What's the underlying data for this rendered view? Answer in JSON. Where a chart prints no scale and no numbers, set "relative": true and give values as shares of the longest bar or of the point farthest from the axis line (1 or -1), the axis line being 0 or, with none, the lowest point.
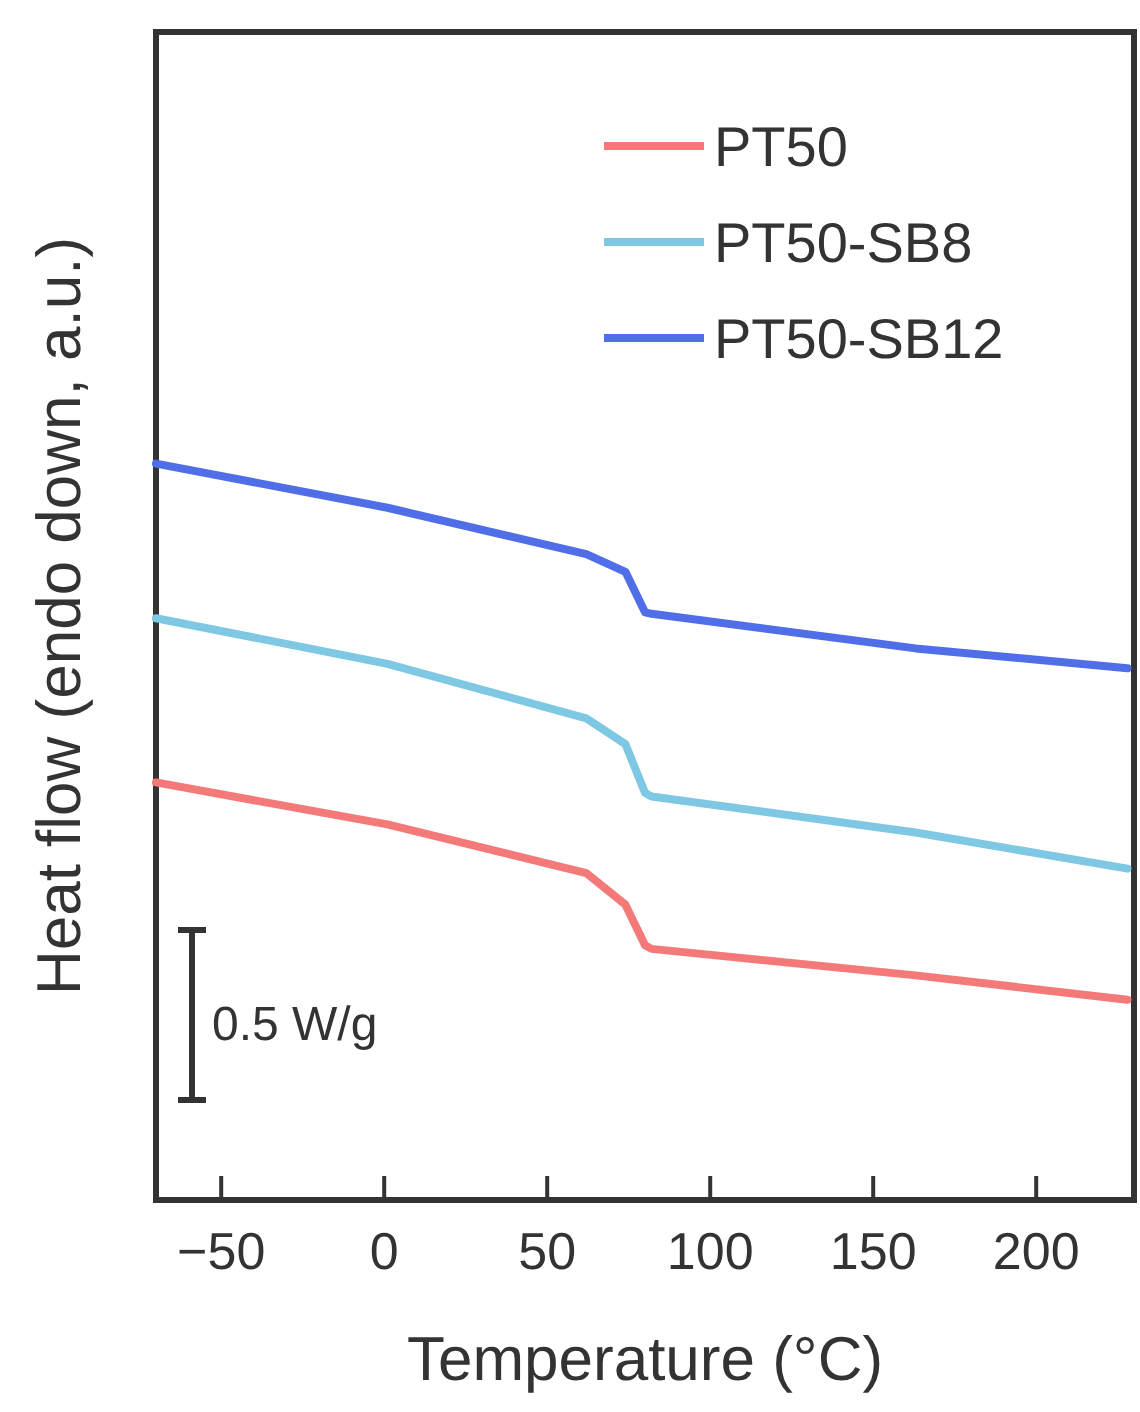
{
  "chart_data": {
    "type": "line",
    "xlabel": "Temperature (°C)",
    "ylabel": "Heat flow (endo down, a.u.)",
    "relative": true,
    "xlim": [
      -70,
      230
    ],
    "xticks": [
      -50,
      0,
      50,
      100,
      150,
      200
    ],
    "tick_labels": "x",
    "legend": "top right",
    "annotations": [
      "0.5 W/g"
    ],
    "x": [
      -70,
      1,
      62,
      74,
      80,
      82,
      163,
      228
    ],
    "series": [
      {
        "name": "PT50",
        "color": "#f47a7a",
        "values": [
          0.567,
          0.51,
          0.444,
          0.401,
          0.346,
          0.341,
          0.305,
          0.272
        ]
      },
      {
        "name": "PT50-SB8",
        "color": "#7ec8e3",
        "values": [
          0.79,
          0.728,
          0.654,
          0.619,
          0.553,
          0.548,
          0.499,
          0.45
        ]
      },
      {
        "name": "PT50-SB12",
        "color": "#4f6ee8",
        "values": [
          1,
          0.94,
          0.877,
          0.853,
          0.798,
          0.796,
          0.749,
          0.722
        ]
      }
    ]
  }
}
